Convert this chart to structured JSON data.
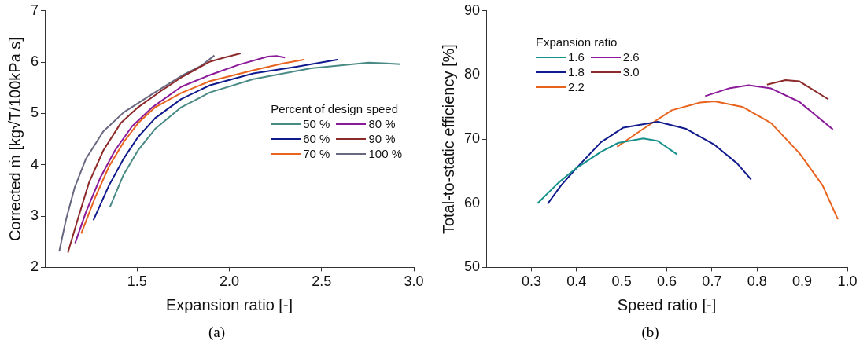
{
  "chart_data": [
    {
      "type": "line",
      "xlabel": "Expansion ratio [-]",
      "ylabel": "Corrected ṁ [kg√T/100kPa s]",
      "legend_title": "Percent of design speed",
      "legend": "right",
      "xlim": [
        1.0,
        3.0
      ],
      "xticks": [
        1.5,
        {
          "value": 2,
          "label": "2.0"
        },
        2.5,
        {
          "value": 3,
          "label": "3.0"
        }
      ],
      "ylim": [
        2,
        7
      ],
      "yticks": [
        2,
        3,
        4,
        5,
        6,
        7
      ],
      "annotations": [
        "(a)"
      ],
      "series": [
        {
          "name": "50 %",
          "color": "#4a8a85",
          "x": [
            1.353,
            1.427,
            1.505,
            1.598,
            1.739,
            1.895,
            2.13,
            2.442,
            2.755,
            2.833,
            2.927
          ],
          "values": [
            3.18,
            3.81,
            4.28,
            4.7,
            5.12,
            5.41,
            5.67,
            5.88,
            5.99,
            5.98,
            5.96
          ]
        },
        {
          "name": "60 %",
          "color": "#101a8c",
          "x": [
            1.263,
            1.348,
            1.427,
            1.505,
            1.598,
            1.739,
            1.895,
            2.13,
            2.364,
            2.591
          ],
          "values": [
            2.92,
            3.6,
            4.12,
            4.54,
            4.91,
            5.28,
            5.55,
            5.78,
            5.91,
            6.05
          ]
        },
        {
          "name": "70 %",
          "color": "#e8641e",
          "x": [
            1.197,
            1.27,
            1.348,
            1.427,
            1.505,
            1.598,
            1.739,
            1.895,
            2.13,
            2.286,
            2.408
          ],
          "values": [
            2.66,
            3.34,
            3.97,
            4.44,
            4.81,
            5.12,
            5.4,
            5.63,
            5.84,
            5.97,
            6.05
          ]
        },
        {
          "name": "80 %",
          "color": "#8b1a9a",
          "x": [
            1.164,
            1.223,
            1.302,
            1.38,
            1.473,
            1.583,
            1.739,
            1.895,
            2.052,
            2.208,
            2.255,
            2.302
          ],
          "values": [
            2.47,
            3.08,
            3.76,
            4.28,
            4.75,
            5.12,
            5.52,
            5.75,
            5.95,
            6.11,
            6.12,
            6.09
          ]
        },
        {
          "name": "90 %",
          "color": "#8c2a2a",
          "x": [
            1.125,
            1.177,
            1.239,
            1.317,
            1.411,
            1.505,
            1.63,
            1.739,
            1.895,
            1.973,
            2.061
          ],
          "values": [
            2.29,
            2.92,
            3.65,
            4.28,
            4.81,
            5.12,
            5.44,
            5.7,
            6.01,
            6.09,
            6.17
          ]
        },
        {
          "name": "100 %",
          "color": "#686880",
          "x": [
            1.078,
            1.114,
            1.161,
            1.223,
            1.317,
            1.427,
            1.583,
            1.739,
            1.848,
            1.919
          ],
          "values": [
            2.31,
            2.92,
            3.55,
            4.12,
            4.65,
            5.02,
            5.38,
            5.73,
            5.93,
            6.13
          ]
        }
      ]
    },
    {
      "type": "line",
      "xlabel": "Speed ratio [-]",
      "ylabel": "Total-to-static efficiency [%]",
      "legend_title": "Expansion ratio",
      "legend": "top left",
      "xlim": [
        0.2,
        1.0
      ],
      "xticks": [
        0.3,
        0.4,
        0.5,
        0.6,
        0.7,
        0.8,
        0.9,
        {
          "value": 1,
          "label": "1.0"
        }
      ],
      "ylim": [
        50,
        90
      ],
      "yticks": [
        50,
        60,
        70,
        80,
        90
      ],
      "annotations": [
        "(b)"
      ],
      "series": [
        {
          "name": "1.6",
          "color": "#17908c",
          "x": [
            0.314,
            0.36,
            0.4,
            0.454,
            0.492,
            0.548,
            0.58,
            0.623
          ],
          "values": [
            60.0,
            63.2,
            65.5,
            68.0,
            69.4,
            70.1,
            69.7,
            67.6
          ]
        },
        {
          "name": "1.8",
          "color": "#101a8c",
          "x": [
            0.336,
            0.366,
            0.4,
            0.454,
            0.504,
            0.58,
            0.643,
            0.706,
            0.756,
            0.787
          ],
          "values": [
            59.9,
            62.8,
            65.5,
            69.5,
            71.8,
            72.7,
            71.6,
            69.1,
            66.2,
            63.7
          ]
        },
        {
          "name": "2.2",
          "color": "#e8641e",
          "x": [
            0.49,
            0.548,
            0.611,
            0.674,
            0.706,
            0.769,
            0.831,
            0.894,
            0.945,
            0.979
          ],
          "values": [
            68.8,
            71.6,
            74.5,
            75.7,
            75.9,
            75.0,
            72.5,
            67.8,
            62.8,
            57.5
          ]
        },
        {
          "name": "2.6",
          "color": "#8b1a9a",
          "x": [
            0.685,
            0.737,
            0.781,
            0.831,
            0.894,
            0.968
          ],
          "values": [
            76.7,
            77.9,
            78.4,
            77.9,
            75.8,
            71.5
          ]
        },
        {
          "name": "3.0",
          "color": "#8c2a2a",
          "x": [
            0.822,
            0.863,
            0.894,
            0.958
          ],
          "values": [
            78.5,
            79.2,
            79.0,
            76.2
          ]
        }
      ]
    }
  ]
}
